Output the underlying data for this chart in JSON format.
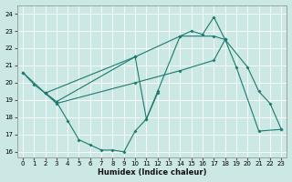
{
  "bg_color": "#cce8e5",
  "grid_color": "#b8d8d5",
  "line_color": "#1a7a6e",
  "xlabel": "Humidex (Indice chaleur)",
  "xlim": [
    -0.5,
    23.5
  ],
  "ylim": [
    15.7,
    24.5
  ],
  "yticks": [
    16,
    17,
    18,
    19,
    20,
    21,
    22,
    23,
    24
  ],
  "xticks": [
    0,
    1,
    2,
    3,
    4,
    5,
    6,
    7,
    8,
    9,
    10,
    11,
    12,
    13,
    14,
    15,
    16,
    17,
    18,
    19,
    20,
    21,
    22,
    23
  ],
  "line1_x": [
    0,
    1,
    2,
    3,
    4,
    5,
    6,
    7,
    8,
    9,
    10,
    11,
    12
  ],
  "line1_y": [
    20.6,
    19.9,
    19.4,
    18.9,
    17.8,
    16.7,
    16.4,
    16.1,
    16.1,
    16.0,
    17.2,
    17.9,
    19.4
  ],
  "line2_x": [
    2,
    3,
    10,
    14,
    17,
    18,
    19,
    21,
    23
  ],
  "line2_y": [
    19.4,
    18.8,
    20.0,
    20.7,
    21.3,
    22.5,
    20.9,
    17.2,
    17.3
  ],
  "line3_x": [
    0,
    2,
    10,
    14,
    17,
    18
  ],
  "line3_y": [
    20.6,
    19.4,
    21.5,
    22.7,
    22.7,
    22.5
  ],
  "line4_x": [
    2,
    3,
    10,
    11,
    12,
    14,
    15,
    16,
    17,
    18,
    20,
    21,
    22,
    23
  ],
  "line4_y": [
    19.4,
    18.9,
    21.5,
    17.9,
    19.5,
    22.7,
    23.0,
    22.8,
    23.8,
    22.5,
    20.9,
    19.5,
    18.8,
    17.3
  ]
}
